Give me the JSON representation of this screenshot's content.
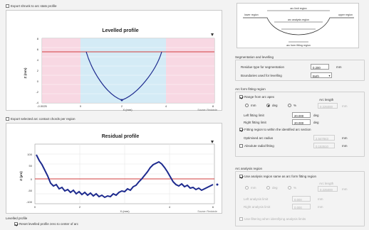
{
  "top_checkbox": {
    "label": "Export shrunk to arc stats profile",
    "checked": false
  },
  "levelled_chart": {
    "title": "Levelled profile",
    "ylabel": "Z (mm)",
    "xlabel": "X (mm)",
    "footer": "Source: Redcircle",
    "x_ticks": [
      "-0.0025",
      "0",
      "2",
      "4",
      "8"
    ],
    "y_ticks": [
      "8",
      "6",
      "4",
      "2",
      "0",
      "-2",
      "-4"
    ]
  },
  "mid_checkbox": {
    "label": "Export selected arc contact chords per region",
    "checked": false
  },
  "residual_chart": {
    "title": "Residual profile",
    "ylabel": "Z (µm)",
    "xlabel": "X (mm)",
    "footer": "Source: Redcircle",
    "x_ticks": [
      "0",
      "2",
      "4",
      "6"
    ],
    "y_ticks": [
      "100",
      "50",
      "0",
      "-50",
      "-100"
    ]
  },
  "bottom": {
    "section_label": "Levelled profile",
    "checkbox_label": "Reset levelled profile zero to center of arc",
    "checked": true
  },
  "diagram": {
    "labels": [
      "arc limit region",
      "lower region",
      "upper region",
      "arc analysis region",
      "arc form fitting region"
    ]
  },
  "segmentation": {
    "title": "Segmentation and levelling",
    "threshold_label": "Residue type for segmentation",
    "threshold_value": "0.200",
    "threshold_unit": "mm",
    "levelling_label": "Boundaries used for levelling",
    "levelling_value": "Both"
  },
  "form_fitting": {
    "title": "Arc form fitting region",
    "auto_label": "Range from arc apex",
    "arc_length_label": "Arc length",
    "arc_length_value": "0.225000",
    "radios": [
      "mm",
      "deg",
      "%"
    ],
    "selected_radio": "deg",
    "left_label": "Left fitting limit",
    "left_value": "20.000",
    "left_unit": "deg",
    "right_label": "Right fitting limit",
    "right_value": "20.000",
    "right_unit": "deg",
    "restrict_label": "Fitting region to within the identified arc section",
    "restrict_checked": true,
    "opt_radius_label": "Optimised arc radius",
    "opt_radius_value": "2.547843",
    "absolute_label": "Absolute radial fitting",
    "absolute_value": "0.153510",
    "mm_unit": "mm"
  },
  "analysis": {
    "title": "Arc analysis region",
    "same_label": "Use analysis region same as arc form fitting region",
    "same_checked": true,
    "arc_length_label": "Arc length",
    "arc_length_value": "0.225000",
    "radios": [
      "mm",
      "deg",
      "%"
    ],
    "left_label": "Left analysis limit",
    "left_value": "0.000",
    "right_label": "Right analysis limit",
    "right_value": "0.000",
    "unit": "mm",
    "bottom_label": "Use filtering when identifying analysis limits"
  },
  "colors": {
    "pink": "#f7d4e0",
    "blue": "#cfe9f5",
    "curve": "#1d2a8e",
    "redline": "#d23c3c"
  }
}
